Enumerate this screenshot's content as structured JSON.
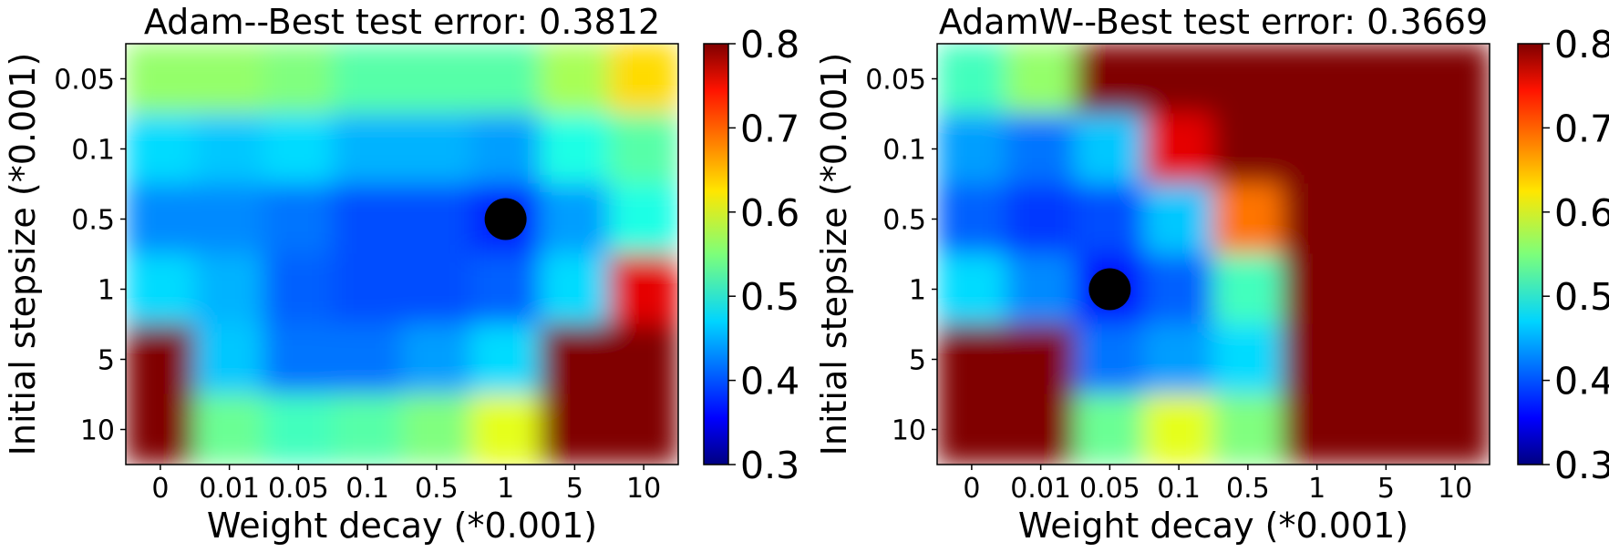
{
  "chart_data": [
    {
      "type": "heatmap",
      "title": "Adam--Best test error: 0.3812",
      "xlabel": "Weight decay (*0.001)",
      "ylabel": "Initial stepsize (*0.001)",
      "x_tick_labels": [
        "0",
        "0.01",
        "0.05",
        "0.1",
        "0.5",
        "1",
        "5",
        "10"
      ],
      "y_tick_labels": [
        "0.05",
        "0.1",
        "0.5",
        "1",
        "5",
        "10"
      ],
      "values": [
        [
          0.56,
          0.56,
          0.55,
          0.53,
          0.53,
          0.53,
          0.57,
          0.63
        ],
        [
          0.47,
          0.46,
          0.47,
          0.45,
          0.45,
          0.44,
          0.5,
          0.53
        ],
        [
          0.43,
          0.43,
          0.42,
          0.4,
          0.4,
          0.38,
          0.44,
          0.5
        ],
        [
          0.47,
          0.45,
          0.41,
          0.4,
          0.4,
          0.41,
          0.47,
          0.75
        ],
        [
          0.8,
          0.46,
          0.42,
          0.42,
          0.44,
          0.47,
          0.8,
          0.8
        ],
        [
          0.8,
          0.54,
          0.52,
          0.53,
          0.55,
          0.6,
          0.8,
          0.8
        ]
      ],
      "best": {
        "x": "1",
        "y": "0.5",
        "value": 0.3812
      },
      "colorbar": {
        "colormap": "jet",
        "min": 0.3,
        "max": 0.8,
        "ticks": [
          "0.3",
          "0.4",
          "0.5",
          "0.6",
          "0.7",
          "0.8"
        ]
      }
    },
    {
      "type": "heatmap",
      "title": "AdamW--Best test error: 0.3669",
      "xlabel": "Weight decay (*0.001)",
      "ylabel": "Initial stepsize (*0.001)",
      "x_tick_labels": [
        "0",
        "0.01",
        "0.05",
        "0.1",
        "0.5",
        "1",
        "5",
        "10"
      ],
      "y_tick_labels": [
        "0.05",
        "0.1",
        "0.5",
        "1",
        "5",
        "10"
      ],
      "values": [
        [
          0.52,
          0.56,
          0.8,
          0.8,
          0.8,
          0.8,
          0.8,
          0.8
        ],
        [
          0.44,
          0.42,
          0.46,
          0.75,
          0.8,
          0.8,
          0.8,
          0.8
        ],
        [
          0.41,
          0.39,
          0.4,
          0.46,
          0.68,
          0.8,
          0.8,
          0.8
        ],
        [
          0.47,
          0.43,
          0.37,
          0.41,
          0.52,
          0.8,
          0.8,
          0.8
        ],
        [
          0.8,
          0.8,
          0.42,
          0.44,
          0.47,
          0.8,
          0.8,
          0.8
        ],
        [
          0.8,
          0.8,
          0.54,
          0.6,
          0.55,
          0.8,
          0.8,
          0.8
        ]
      ],
      "best": {
        "x": "0.05",
        "y": "1",
        "value": 0.3669
      },
      "colorbar": {
        "colormap": "jet",
        "min": 0.3,
        "max": 0.8,
        "ticks": [
          "0.3",
          "0.4",
          "0.5",
          "0.6",
          "0.7",
          "0.8"
        ]
      }
    }
  ]
}
